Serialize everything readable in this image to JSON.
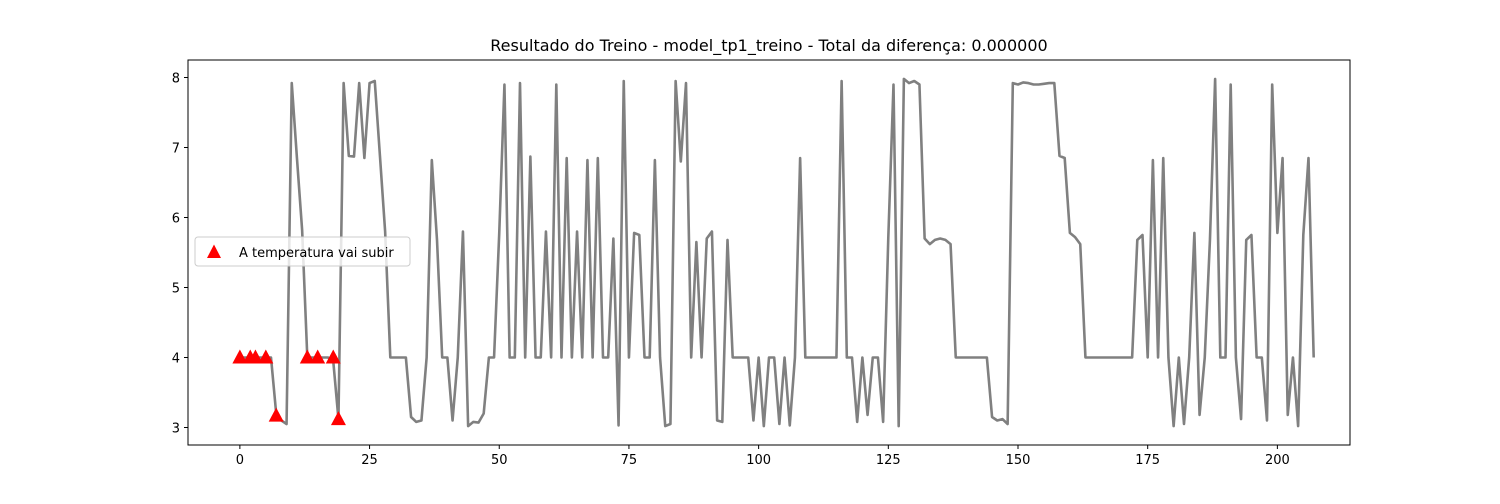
{
  "chart_data": {
    "type": "line",
    "title": "Resultado do Treino - model_tp1_treino - Total da diferença: 0.000000",
    "xlabel": "",
    "ylabel": "",
    "xlim": [
      -10,
      214
    ],
    "ylim": [
      2.75,
      8.25
    ],
    "xticks": [
      0,
      25,
      50,
      75,
      100,
      125,
      150,
      175,
      200
    ],
    "yticks": [
      3,
      4,
      5,
      6,
      7,
      8
    ],
    "grid": false,
    "legend": {
      "position": "center-left",
      "entries": [
        "A temperatura vai subir"
      ]
    },
    "colors": {
      "line": "#808080",
      "marker": "#ff0000"
    },
    "series": [
      {
        "type": "line",
        "values": [
          4,
          4,
          4,
          4,
          4,
          4,
          4,
          3.2,
          3.1,
          3.05,
          7.92,
          6.85,
          5.82,
          4,
          4,
          4,
          4,
          4,
          3.95,
          3.12,
          7.92,
          6.88,
          6.87,
          7.92,
          6.85,
          7.92,
          7.95,
          6.88,
          5.8,
          4,
          4,
          4,
          4,
          3.15,
          3.08,
          3.1,
          4,
          6.82,
          5.68,
          4,
          4,
          3.1,
          4,
          5.8,
          3.02,
          3.08,
          3.07,
          3.2,
          4,
          4,
          5.78,
          7.9,
          4,
          4,
          7.92,
          4,
          6.87,
          4,
          4,
          5.8,
          4,
          7.9,
          4,
          6.85,
          4,
          5.8,
          4,
          6.82,
          4,
          6.85,
          4,
          4,
          5.7,
          3.03,
          7.95,
          4,
          5.78,
          5.75,
          4,
          4,
          6.82,
          4,
          3.02,
          3.05,
          7.95,
          6.8,
          7.92,
          4,
          5.65,
          4,
          5.7,
          5.8,
          3.1,
          3.08,
          5.68,
          4,
          4,
          4,
          4,
          3.1,
          4,
          3.02,
          4,
          4,
          3.05,
          4,
          3.03,
          4,
          6.85,
          4,
          4,
          4,
          4,
          4,
          4,
          4,
          7.95,
          4,
          4,
          3.08,
          4,
          3.18,
          4,
          4,
          3.08,
          5.72,
          7.9,
          3.02,
          7.98,
          7.92,
          7.95,
          7.9,
          5.7,
          5.62,
          5.68,
          5.7,
          5.68,
          5.62,
          4,
          4,
          4,
          4,
          4,
          4,
          4,
          3.15,
          3.1,
          3.12,
          3.05,
          7.92,
          7.9,
          7.93,
          7.92,
          7.9,
          7.9,
          7.91,
          7.92,
          7.92,
          6.88,
          6.85,
          5.78,
          5.72,
          5.62,
          4,
          4,
          4,
          4,
          4,
          4,
          4,
          4,
          4,
          4,
          5.68,
          5.75,
          4,
          6.82,
          4,
          6.85,
          4,
          3.02,
          4,
          3.05,
          4,
          5.78,
          3.18,
          4,
          5.68,
          7.98,
          4,
          4,
          7.9,
          4,
          3.12,
          5.68,
          5.75,
          4,
          4,
          3.1,
          7.9,
          5.78,
          6.85,
          3.18,
          4,
          3.02,
          5.75,
          6.85,
          4
        ]
      },
      {
        "type": "scatter",
        "name": "A temperatura vai subir",
        "marker": "triangle-up",
        "x": [
          0,
          2,
          3,
          5,
          7,
          13,
          15,
          18,
          19
        ],
        "y": [
          4,
          4,
          4,
          4,
          3.17,
          4,
          4,
          4,
          3.12
        ]
      }
    ]
  }
}
